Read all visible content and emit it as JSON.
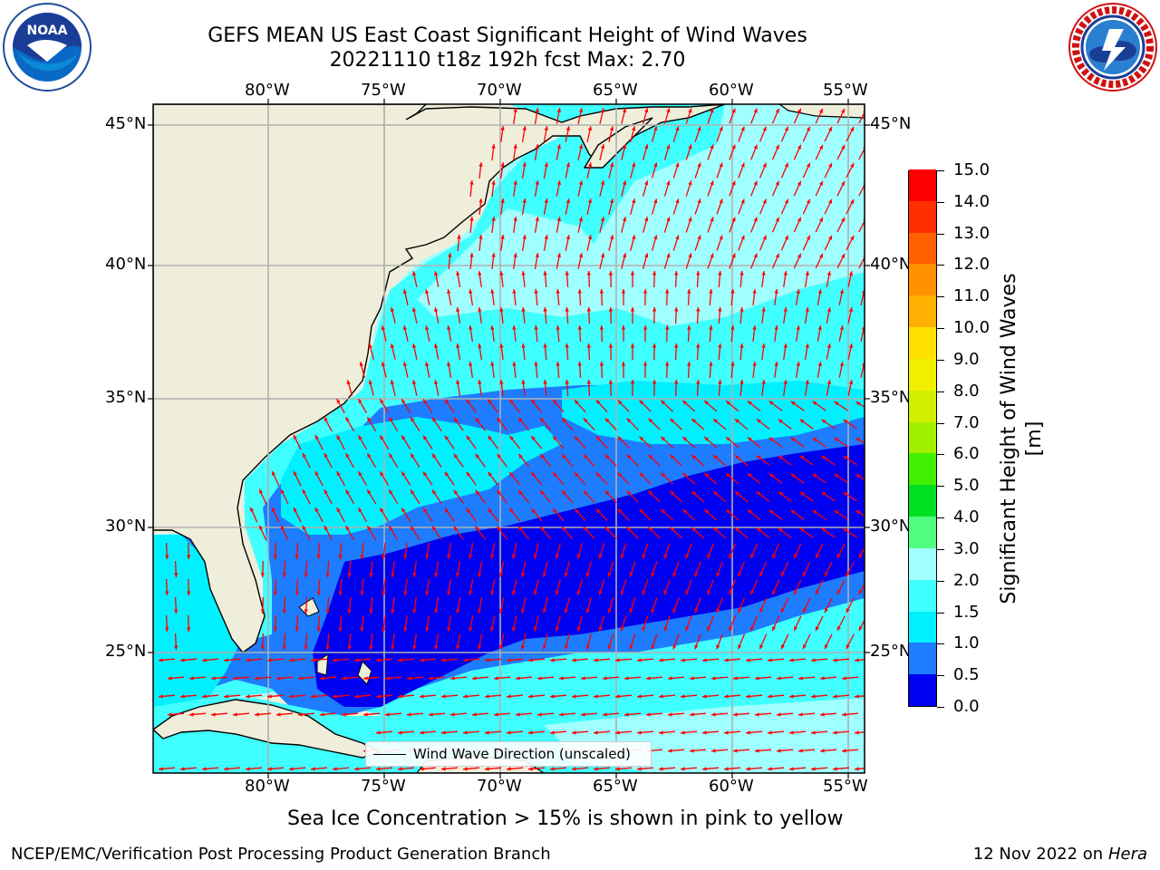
{
  "title": {
    "line1": "GEFS MEAN US East Coast Significant Height of Wind Waves",
    "line2": "20221110 t18z 192h fcst   Max: 2.70"
  },
  "logos": {
    "left": "noaa-logo",
    "left_text": "NOAA",
    "right": "national-weather-service-logo"
  },
  "axes": {
    "lon_labels": [
      "80°W",
      "75°W",
      "70°W",
      "65°W",
      "60°W",
      "55°W"
    ],
    "lat_labels": [
      "45°N",
      "40°N",
      "35°N",
      "30°N",
      "25°N"
    ]
  },
  "colorbar": {
    "label": "Significant Height of Wind Waves [m]",
    "ticks": [
      "0.0",
      "0.5",
      "1.0",
      "1.5",
      "2.0",
      "3.0",
      "4.0",
      "5.0",
      "6.0",
      "7.0",
      "8.0",
      "9.0",
      "10.0",
      "11.0",
      "12.0",
      "13.0",
      "14.0",
      "15.0"
    ],
    "colors": [
      "#0000f0",
      "#1e7cff",
      "#00f0ff",
      "#40ffff",
      "#a0ffff",
      "#50ff80",
      "#00e020",
      "#40f000",
      "#a0f000",
      "#d0f000",
      "#f0f000",
      "#ffe000",
      "#ffb000",
      "#ff9000",
      "#ff6000",
      "#ff3000",
      "#ff0000"
    ]
  },
  "legend": {
    "text": "Wind Wave Direction (unscaled)"
  },
  "note": "Sea Ice Concentration > 15% is shown in pink to yellow",
  "footer": {
    "left": "NCEP/EMC/Verification Post Processing Product Generation Branch",
    "right_date": "12 Nov 2022 on",
    "right_host": "Hera"
  },
  "colors": {
    "land": "#efeedb",
    "arrow": "#ff0000",
    "grid": "#b0b0b0"
  }
}
